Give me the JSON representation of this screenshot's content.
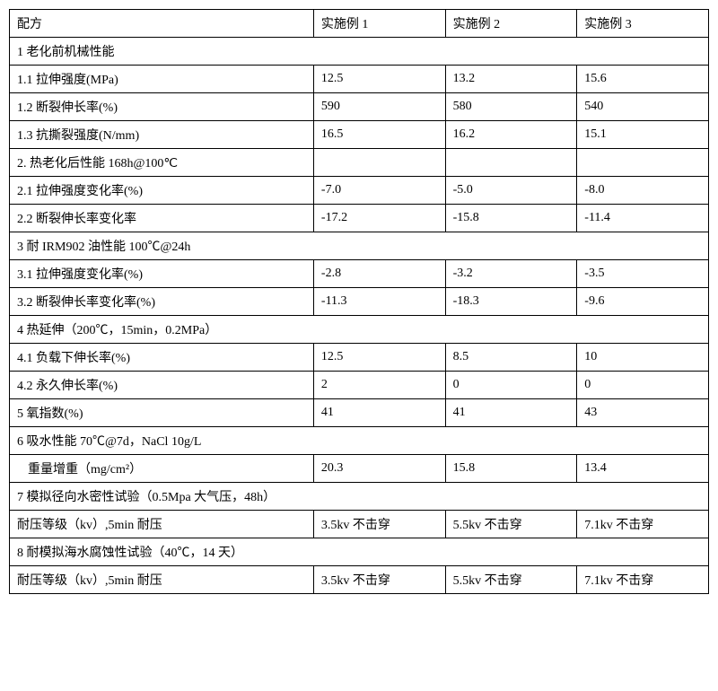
{
  "header": {
    "col0": "配方",
    "col1": "实施例 1",
    "col2": "实施例 2",
    "col3": "实施例 3"
  },
  "sections": {
    "s1": {
      "title": "1 老化前机械性能"
    },
    "r1_1": {
      "label": "1.1 拉伸强度(MPa)",
      "v1": "12.5",
      "v2": "13.2",
      "v3": "15.6"
    },
    "r1_2": {
      "label": "1.2 断裂伸长率(%)",
      "v1": "590",
      "v2": "580",
      "v3": "540"
    },
    "r1_3": {
      "label": "1.3 抗撕裂强度(N/mm)",
      "v1": "16.5",
      "v2": "16.2",
      "v3": "15.1"
    },
    "s2": {
      "title": "2. 热老化后性能 168h@100℃"
    },
    "r2_1": {
      "label": "2.1 拉伸强度变化率(%)",
      "v1": "-7.0",
      "v2": "-5.0",
      "v3": "-8.0"
    },
    "r2_2": {
      "label": "2.2 断裂伸长率变化率",
      "v1": "-17.2",
      "v2": "-15.8",
      "v3": "-11.4"
    },
    "s3": {
      "title": "3 耐 IRM902 油性能 100℃@24h"
    },
    "r3_1": {
      "label": "3.1 拉伸强度变化率(%)",
      "v1": "-2.8",
      "v2": "-3.2",
      "v3": "-3.5"
    },
    "r3_2": {
      "label": "3.2 断裂伸长率变化率(%)",
      "v1": "-11.3",
      "v2": "-18.3",
      "v3": "-9.6"
    },
    "s4": {
      "title": "4 热延伸（200℃，15min，0.2MPa）"
    },
    "r4_1": {
      "label": "4.1 负载下伸长率(%)",
      "v1": "12.5",
      "v2": "  8.5",
      "v3": "10"
    },
    "r4_2": {
      "label": "4.2 永久伸长率(%)",
      "v1": "2",
      "v2": "0",
      "v3": "0"
    },
    "r5": {
      "label": "5 氧指数(%)",
      "v1": "41",
      "v2": "41",
      "v3": "43"
    },
    "s6": {
      "title": "6 吸水性能 70℃@7d，NaCl 10g/L"
    },
    "r6_1": {
      "label": "重量增重（mg/cm²）",
      "v1": "20.3",
      "v2": "15.8",
      "v3": "13.4"
    },
    "s7": {
      "title": "7 模拟径向水密性试验（0.5Mpa 大气压，48h）"
    },
    "r7_1": {
      "label": "耐压等级（kv）,5min 耐压",
      "v1": "3.5kv 不击穿",
      "v2": "5.5kv 不击穿",
      "v3": "7.1kv 不击穿"
    },
    "s8": {
      "title": "8 耐模拟海水腐蚀性试验（40℃，14 天）"
    },
    "r8_1": {
      "label": "耐压等级（kv）,5min 耐压",
      "v1": "3.5kv 不击穿",
      "v2": "5.5kv 不击穿",
      "v3": "7.1kv 不击穿"
    }
  }
}
